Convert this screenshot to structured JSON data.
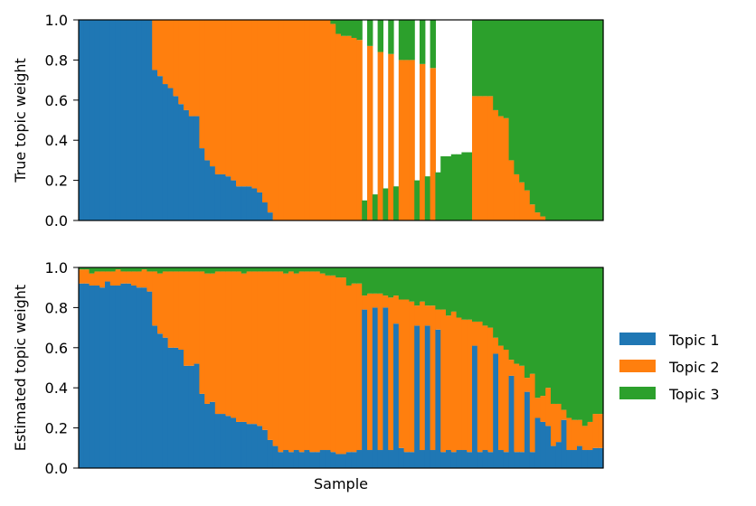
{
  "chart_data": [
    {
      "type": "bar",
      "stacked": true,
      "ylabel": "True topic weight",
      "xlabel": "",
      "ylim": [
        0,
        1
      ],
      "yticks": [
        "0.0",
        "0.2",
        "0.4",
        "0.6",
        "0.8",
        "1.0"
      ],
      "x": [
        1,
        2,
        3,
        4,
        5,
        6,
        7,
        8,
        9,
        10,
        11,
        12,
        13,
        14,
        15,
        16,
        17,
        18,
        19,
        20,
        21,
        22,
        23,
        24,
        25,
        26,
        27,
        28,
        29,
        30,
        31,
        32,
        33,
        34,
        35,
        36,
        37,
        38,
        39,
        40,
        41,
        42,
        43,
        44,
        45,
        46,
        47,
        48,
        49,
        50,
        51,
        52,
        53,
        54,
        55,
        56,
        57,
        58,
        59,
        60,
        61,
        62,
        63,
        64,
        65,
        66,
        67,
        68,
        69,
        70,
        71,
        72,
        73,
        74,
        75,
        76,
        77,
        78,
        79,
        80,
        81,
        82,
        83,
        84,
        85,
        86,
        87,
        88,
        89,
        90,
        91,
        92,
        93,
        94,
        95,
        96,
        97,
        98,
        99,
        100
      ],
      "series": [
        {
          "name": "Topic 1",
          "values": [
            1,
            1,
            1,
            1,
            1,
            1,
            1,
            1,
            1,
            1,
            1,
            1,
            1,
            1,
            0.75,
            0.72,
            0.68,
            0.66,
            0.62,
            0.58,
            0.55,
            0.52,
            0.52,
            0.36,
            0.3,
            0.27,
            0.23,
            0.23,
            0.22,
            0.2,
            0.17,
            0.17,
            0.17,
            0.16,
            0.14,
            0.09,
            0.04,
            0,
            0,
            0,
            0,
            0,
            0,
            0,
            0,
            0,
            0,
            0,
            0,
            0,
            0,
            0,
            0,
            0,
            0,
            0,
            0,
            0,
            0,
            0,
            0,
            0,
            0,
            0,
            0,
            0,
            0,
            0,
            0,
            0,
            0,
            0,
            0,
            0,
            0,
            0,
            0,
            0,
            0,
            0,
            0,
            0,
            0,
            0,
            0,
            0,
            0,
            0,
            0,
            0,
            0,
            0,
            0,
            0,
            0,
            0,
            0,
            0,
            0,
            0
          ]
        },
        {
          "name": "Topic 2",
          "values": [
            0,
            0,
            0,
            0,
            0,
            0,
            0,
            0,
            0,
            0,
            0,
            0,
            0,
            0,
            0.25,
            0.28,
            0.32,
            0.34,
            0.38,
            0.42,
            0.45,
            0.48,
            0.48,
            0.64,
            0.7,
            0.73,
            0.77,
            0.77,
            0.78,
            0.8,
            0.83,
            0.83,
            0.83,
            0.84,
            0.86,
            0.91,
            0.96,
            1,
            1,
            1,
            1,
            1,
            1,
            1,
            1,
            1,
            1,
            1,
            0.98,
            0.93,
            0.92,
            0.92,
            0.91,
            0.9,
            0,
            0.87,
            0,
            0.84,
            0,
            0.83,
            0,
            0.8,
            0.8,
            0.8,
            0,
            0.78,
            0,
            0.76,
            0,
            0,
            0,
            0,
            0,
            0,
            0,
            0.62,
            0.62,
            0.62,
            0.62,
            0.55,
            0.52,
            0.51,
            0.3,
            0.23,
            0.19,
            0.15,
            0.08,
            0.04,
            0.02,
            0,
            0,
            0,
            0,
            0,
            0,
            0,
            0,
            0,
            0,
            0
          ]
        },
        {
          "name": "Topic 3",
          "values": [
            0,
            0,
            0,
            0,
            0,
            0,
            0,
            0,
            0,
            0,
            0,
            0,
            0,
            0,
            0,
            0,
            0,
            0,
            0,
            0,
            0,
            0,
            0,
            0,
            0,
            0,
            0,
            0,
            0,
            0,
            0,
            0,
            0,
            0,
            0,
            0,
            0,
            0,
            0,
            0,
            0,
            0,
            0,
            0,
            0,
            0,
            0,
            0,
            0.02,
            0.07,
            0.08,
            0.08,
            0.09,
            0.1,
            0.1,
            0.13,
            0.13,
            0.16,
            0.16,
            0.17,
            0.17,
            0.2,
            0.2,
            0.2,
            0.2,
            0.22,
            0.22,
            0.24,
            0.24,
            0.32,
            0.32,
            0.33,
            0.33,
            0.34,
            0.34,
            0.38,
            0.38,
            0.38,
            0.38,
            0.45,
            0.48,
            0.49,
            0.7,
            0.77,
            0.81,
            0.85,
            0.92,
            0.96,
            0.98,
            1,
            1,
            1,
            1,
            1,
            1,
            1,
            1,
            1,
            1,
            1
          ]
        }
      ]
    },
    {
      "type": "bar",
      "stacked": true,
      "ylabel": "Estimated topic weight",
      "xlabel": "Sample",
      "ylim": [
        0,
        1
      ],
      "yticks": [
        "0.0",
        "0.2",
        "0.4",
        "0.6",
        "0.8",
        "1.0"
      ],
      "x": [
        1,
        2,
        3,
        4,
        5,
        6,
        7,
        8,
        9,
        10,
        11,
        12,
        13,
        14,
        15,
        16,
        17,
        18,
        19,
        20,
        21,
        22,
        23,
        24,
        25,
        26,
        27,
        28,
        29,
        30,
        31,
        32,
        33,
        34,
        35,
        36,
        37,
        38,
        39,
        40,
        41,
        42,
        43,
        44,
        45,
        46,
        47,
        48,
        49,
        50,
        51,
        52,
        53,
        54,
        55,
        56,
        57,
        58,
        59,
        60,
        61,
        62,
        63,
        64,
        65,
        66,
        67,
        68,
        69,
        70,
        71,
        72,
        73,
        74,
        75,
        76,
        77,
        78,
        79,
        80,
        81,
        82,
        83,
        84,
        85,
        86,
        87,
        88,
        89,
        90,
        91,
        92,
        93,
        94,
        95,
        96,
        97,
        98,
        99,
        100
      ],
      "series": [
        {
          "name": "Topic 1",
          "values": [
            0.92,
            0.92,
            0.91,
            0.91,
            0.9,
            0.93,
            0.91,
            0.91,
            0.92,
            0.92,
            0.91,
            0.9,
            0.9,
            0.88,
            0.71,
            0.67,
            0.65,
            0.6,
            0.6,
            0.59,
            0.51,
            0.51,
            0.52,
            0.37,
            0.32,
            0.33,
            0.27,
            0.27,
            0.26,
            0.25,
            0.23,
            0.23,
            0.22,
            0.22,
            0.21,
            0.19,
            0.14,
            0.11,
            0.08,
            0.09,
            0.08,
            0.09,
            0.08,
            0.09,
            0.08,
            0.08,
            0.09,
            0.09,
            0.08,
            0.07,
            0.07,
            0.08,
            0.08,
            0.09,
            0.79,
            0.09,
            0.8,
            0.09,
            0.8,
            0.09,
            0.72,
            0.1,
            0.08,
            0.08,
            0.71,
            0.09,
            0.71,
            0.09,
            0.69,
            0.08,
            0.09,
            0.08,
            0.09,
            0.09,
            0.08,
            0.61,
            0.08,
            0.09,
            0.08,
            0.57,
            0.09,
            0.08,
            0.46,
            0.08,
            0.08,
            0.38,
            0.08,
            0.25,
            0.23,
            0.21,
            0.11,
            0.13,
            0.24,
            0.09,
            0.09,
            0.11,
            0.09,
            0.09,
            0.1,
            0.1
          ]
        },
        {
          "name": "Topic 2",
          "values": [
            0.07,
            0.07,
            0.06,
            0.07,
            0.08,
            0.05,
            0.07,
            0.08,
            0.06,
            0.06,
            0.07,
            0.08,
            0.09,
            0.1,
            0.27,
            0.3,
            0.33,
            0.38,
            0.38,
            0.39,
            0.47,
            0.47,
            0.46,
            0.61,
            0.65,
            0.64,
            0.71,
            0.71,
            0.72,
            0.73,
            0.75,
            0.74,
            0.76,
            0.76,
            0.77,
            0.79,
            0.84,
            0.87,
            0.9,
            0.88,
            0.9,
            0.88,
            0.9,
            0.89,
            0.9,
            0.9,
            0.88,
            0.87,
            0.88,
            0.88,
            0.88,
            0.83,
            0.84,
            0.83,
            0.07,
            0.78,
            0.07,
            0.78,
            0.06,
            0.76,
            0.14,
            0.74,
            0.76,
            0.75,
            0.1,
            0.74,
            0.1,
            0.72,
            0.1,
            0.71,
            0.67,
            0.7,
            0.66,
            0.65,
            0.66,
            0.12,
            0.65,
            0.62,
            0.62,
            0.08,
            0.52,
            0.51,
            0.08,
            0.44,
            0.43,
            0.07,
            0.39,
            0.1,
            0.13,
            0.19,
            0.21,
            0.19,
            0.05,
            0.16,
            0.15,
            0.13,
            0.12,
            0.14,
            0.17,
            0.17
          ]
        },
        {
          "name": "Topic 3",
          "values": [
            0.01,
            0.01,
            0.03,
            0.02,
            0.02,
            0.02,
            0.02,
            0.01,
            0.02,
            0.02,
            0.02,
            0.02,
            0.01,
            0.02,
            0.02,
            0.03,
            0.02,
            0.02,
            0.02,
            0.02,
            0.02,
            0.02,
            0.02,
            0.02,
            0.03,
            0.03,
            0.02,
            0.02,
            0.02,
            0.02,
            0.02,
            0.03,
            0.02,
            0.02,
            0.02,
            0.02,
            0.02,
            0.02,
            0.02,
            0.03,
            0.02,
            0.03,
            0.02,
            0.02,
            0.02,
            0.02,
            0.03,
            0.04,
            0.04,
            0.05,
            0.05,
            0.09,
            0.08,
            0.08,
            0.14,
            0.13,
            0.13,
            0.13,
            0.14,
            0.15,
            0.14,
            0.16,
            0.16,
            0.17,
            0.19,
            0.17,
            0.19,
            0.19,
            0.21,
            0.21,
            0.24,
            0.22,
            0.25,
            0.26,
            0.26,
            0.27,
            0.27,
            0.29,
            0.3,
            0.35,
            0.39,
            0.41,
            0.46,
            0.48,
            0.49,
            0.55,
            0.53,
            0.65,
            0.64,
            0.6,
            0.68,
            0.68,
            0.71,
            0.75,
            0.76,
            0.76,
            0.79,
            0.77,
            0.73,
            0.73
          ]
        }
      ]
    }
  ],
  "legend": {
    "position": "right",
    "items": [
      {
        "label": "Topic 1",
        "color": "#1f77b4"
      },
      {
        "label": "Topic 2",
        "color": "#ff7f0e"
      },
      {
        "label": "Topic 3",
        "color": "#2ca02c"
      }
    ]
  }
}
